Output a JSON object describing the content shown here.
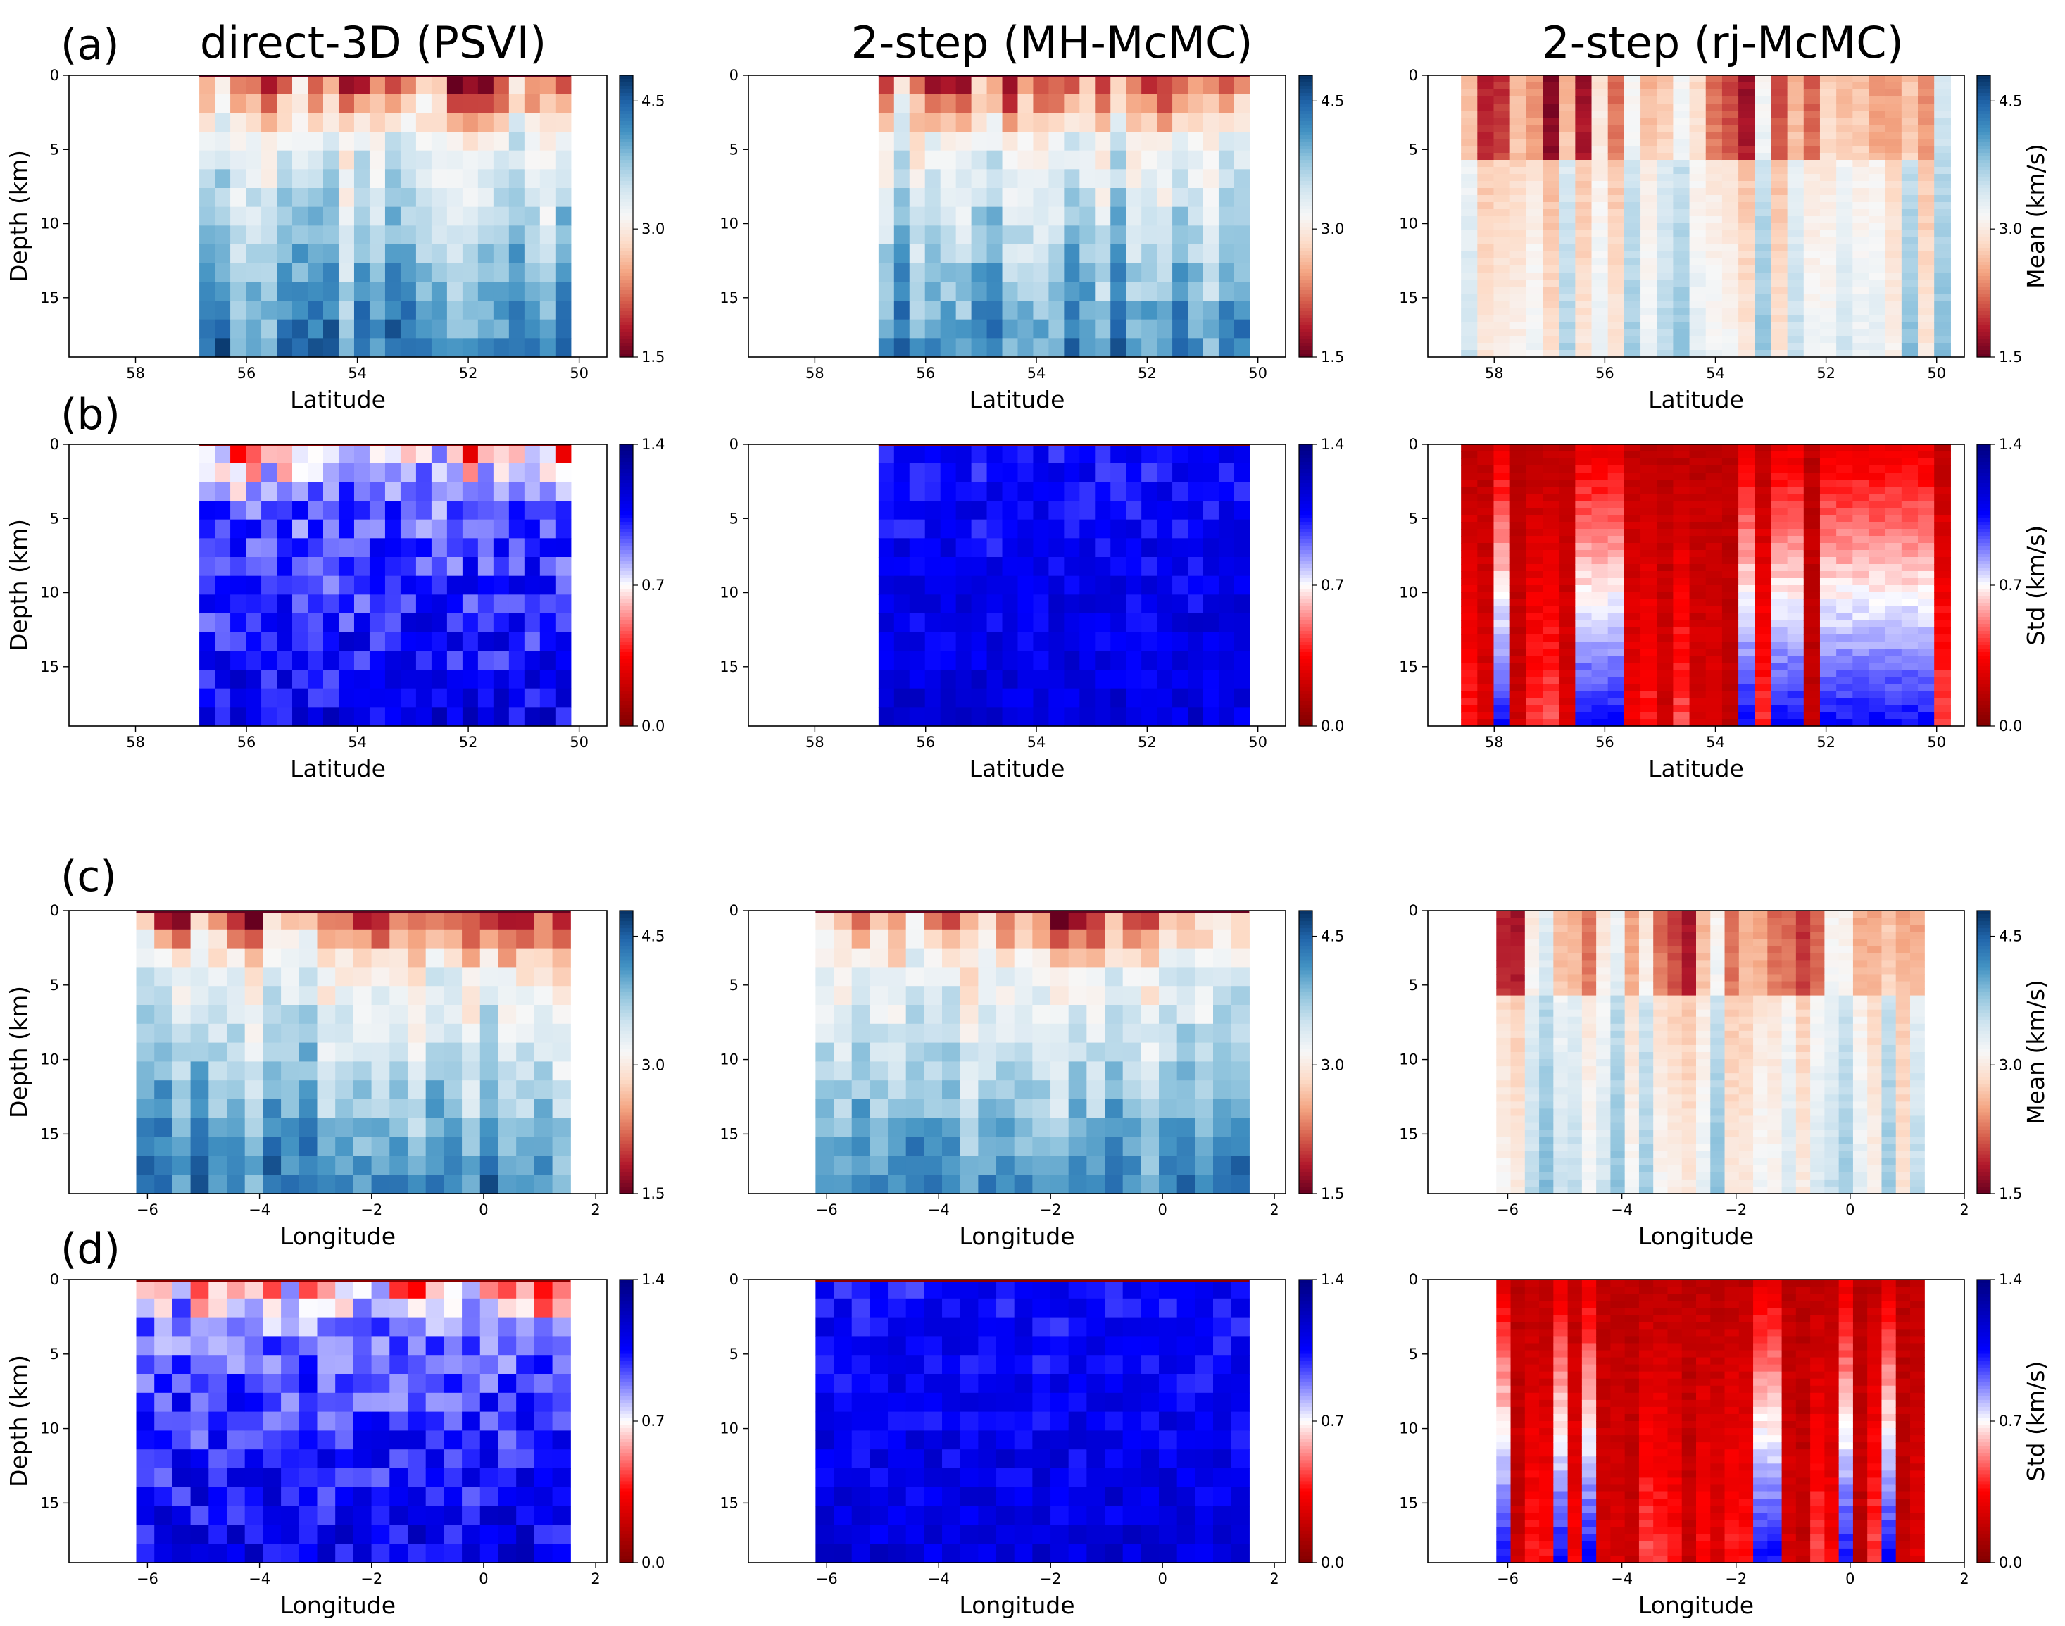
{
  "figure": {
    "column_titles": [
      "direct-3D (PSVI)",
      "2-step (MH-McMC)",
      "2-step (rj-McMC)"
    ],
    "row_labels": [
      "(a)",
      "(b)",
      "(c)",
      "(d)"
    ]
  },
  "colorbars": {
    "mean": {
      "ticks": [
        "1.5",
        "3.0",
        "4.5"
      ],
      "min": 1.5,
      "mid": 3.0,
      "max": 4.8,
      "label": "Mean (km/s)",
      "colors": [
        "#67001f",
        "#b2182b",
        "#d6604d",
        "#f4a582",
        "#fddbc7",
        "#f7f7f7",
        "#d1e5f0",
        "#92c5de",
        "#4393c3",
        "#2166ac",
        "#053061"
      ]
    },
    "std": {
      "ticks": [
        "0.0",
        "0.7",
        "1.4"
      ],
      "min": 0.0,
      "mid": 0.7,
      "max": 1.4,
      "label": "Std (km/s)",
      "colors": [
        "#800000",
        "#ff0000",
        "#ffffff",
        "#0000ff",
        "#000080"
      ]
    }
  },
  "chart_data": [
    {
      "id": "a1",
      "type": "heatmap",
      "row": "(a)",
      "title": "direct-3D (PSVI)",
      "quantity": "mean",
      "xlabel": "Latitude",
      "ylabel": "Depth (km)",
      "xlim": [
        59.2,
        49.5
      ],
      "ylim": [
        0,
        19
      ],
      "x_ticks": [
        58,
        56,
        54,
        52,
        50
      ],
      "y_ticks": [
        0,
        5,
        10,
        15
      ],
      "x_extent": [
        56.85,
        50.15
      ],
      "style": "grid",
      "seed": 11
    },
    {
      "id": "a2",
      "type": "heatmap",
      "row": "(a)",
      "title": "2-step (MH-McMC)",
      "quantity": "mean",
      "xlabel": "Latitude",
      "ylabel": "",
      "xlim": [
        59.2,
        49.5
      ],
      "ylim": [
        0,
        19
      ],
      "x_ticks": [
        58,
        56,
        54,
        52,
        50
      ],
      "y_ticks": [
        0,
        5,
        10,
        15
      ],
      "x_extent": [
        56.85,
        50.15
      ],
      "style": "grid",
      "seed": 23
    },
    {
      "id": "a3",
      "type": "heatmap",
      "row": "(a)",
      "title": "2-step (rj-McMC)",
      "quantity": "mean",
      "xlabel": "Latitude",
      "ylabel": "",
      "xlim": [
        59.2,
        49.5
      ],
      "ylim": [
        0,
        19
      ],
      "x_ticks": [
        58,
        56,
        54,
        52,
        50
      ],
      "y_ticks": [
        0,
        5,
        10,
        15
      ],
      "x_extent": [
        58.6,
        49.75
      ],
      "style": "smooth",
      "seed": 37
    },
    {
      "id": "b1",
      "type": "heatmap",
      "row": "(b)",
      "title": "direct-3D (PSVI)",
      "quantity": "std",
      "xlabel": "Latitude",
      "ylabel": "Depth (km)",
      "xlim": [
        59.2,
        49.5
      ],
      "ylim": [
        0,
        19
      ],
      "x_ticks": [
        58,
        56,
        54,
        52,
        50
      ],
      "y_ticks": [
        0,
        5,
        10,
        15
      ],
      "x_extent": [
        56.85,
        50.15
      ],
      "style": "grid",
      "seed": 41
    },
    {
      "id": "b2",
      "type": "heatmap",
      "row": "(b)",
      "title": "2-step (MH-McMC)",
      "quantity": "std",
      "xlabel": "Latitude",
      "ylabel": "",
      "xlim": [
        59.2,
        49.5
      ],
      "ylim": [
        0,
        19
      ],
      "x_ticks": [
        58,
        56,
        54,
        52,
        50
      ],
      "y_ticks": [
        0,
        5,
        10,
        15
      ],
      "x_extent": [
        56.85,
        50.15
      ],
      "style": "grid",
      "seed": 53
    },
    {
      "id": "b3",
      "type": "heatmap",
      "row": "(b)",
      "title": "2-step (rj-McMC)",
      "quantity": "std",
      "xlabel": "Latitude",
      "ylabel": "",
      "xlim": [
        59.2,
        49.5
      ],
      "ylim": [
        0,
        19
      ],
      "x_ticks": [
        58,
        56,
        54,
        52,
        50
      ],
      "y_ticks": [
        0,
        5,
        10,
        15
      ],
      "x_extent": [
        58.6,
        49.75
      ],
      "style": "smooth",
      "seed": 67
    },
    {
      "id": "c1",
      "type": "heatmap",
      "row": "(c)",
      "title": "direct-3D (PSVI)",
      "quantity": "mean",
      "xlabel": "Longitude",
      "ylabel": "Depth (km)",
      "xlim": [
        -7.4,
        2.2
      ],
      "ylim": [
        0,
        19
      ],
      "x_ticks": [
        -6,
        -4,
        -2,
        0,
        2
      ],
      "y_ticks": [
        0,
        5,
        10,
        15
      ],
      "x_extent": [
        -6.2,
        1.55
      ],
      "style": "grid",
      "seed": 71
    },
    {
      "id": "c2",
      "type": "heatmap",
      "row": "(c)",
      "title": "2-step (MH-McMC)",
      "quantity": "mean",
      "xlabel": "Longitude",
      "ylabel": "",
      "xlim": [
        -7.4,
        2.2
      ],
      "ylim": [
        0,
        19
      ],
      "x_ticks": [
        -6,
        -4,
        -2,
        0,
        2
      ],
      "y_ticks": [
        0,
        5,
        10,
        15
      ],
      "x_extent": [
        -6.2,
        1.55
      ],
      "style": "grid",
      "seed": 83
    },
    {
      "id": "c3",
      "type": "heatmap",
      "row": "(c)",
      "title": "2-step (rj-McMC)",
      "quantity": "mean",
      "xlabel": "Longitude",
      "ylabel": "",
      "xlim": [
        -7.4,
        2.0
      ],
      "ylim": [
        0,
        19
      ],
      "x_ticks": [
        -6,
        -4,
        -2,
        0,
        2
      ],
      "y_ticks": [
        0,
        5,
        10,
        15
      ],
      "x_extent": [
        -6.2,
        1.3
      ],
      "style": "smooth",
      "seed": 97
    },
    {
      "id": "d1",
      "type": "heatmap",
      "row": "(d)",
      "title": "direct-3D (PSVI)",
      "quantity": "std",
      "xlabel": "Longitude",
      "ylabel": "Depth (km)",
      "xlim": [
        -7.4,
        2.2
      ],
      "ylim": [
        0,
        19
      ],
      "x_ticks": [
        -6,
        -4,
        -2,
        0,
        2
      ],
      "y_ticks": [
        0,
        5,
        10,
        15
      ],
      "x_extent": [
        -6.2,
        1.55
      ],
      "style": "grid",
      "seed": 101
    },
    {
      "id": "d2",
      "type": "heatmap",
      "row": "(d)",
      "title": "2-step (MH-McMC)",
      "quantity": "std",
      "xlabel": "Longitude",
      "ylabel": "",
      "xlim": [
        -7.4,
        2.2
      ],
      "ylim": [
        0,
        19
      ],
      "x_ticks": [
        -6,
        -4,
        -2,
        0,
        2
      ],
      "y_ticks": [
        0,
        5,
        10,
        15
      ],
      "x_extent": [
        -6.2,
        1.55
      ],
      "style": "grid",
      "seed": 113
    },
    {
      "id": "d3",
      "type": "heatmap",
      "row": "(d)",
      "title": "2-step (rj-McMC)",
      "quantity": "std",
      "xlabel": "Longitude",
      "ylabel": "",
      "xlim": [
        -7.4,
        2.0
      ],
      "ylim": [
        0,
        19
      ],
      "x_ticks": [
        -6,
        -4,
        -2,
        0,
        2
      ],
      "y_ticks": [
        0,
        5,
        10,
        15
      ],
      "x_extent": [
        -6.2,
        1.3
      ],
      "style": "smooth",
      "seed": 127
    }
  ]
}
